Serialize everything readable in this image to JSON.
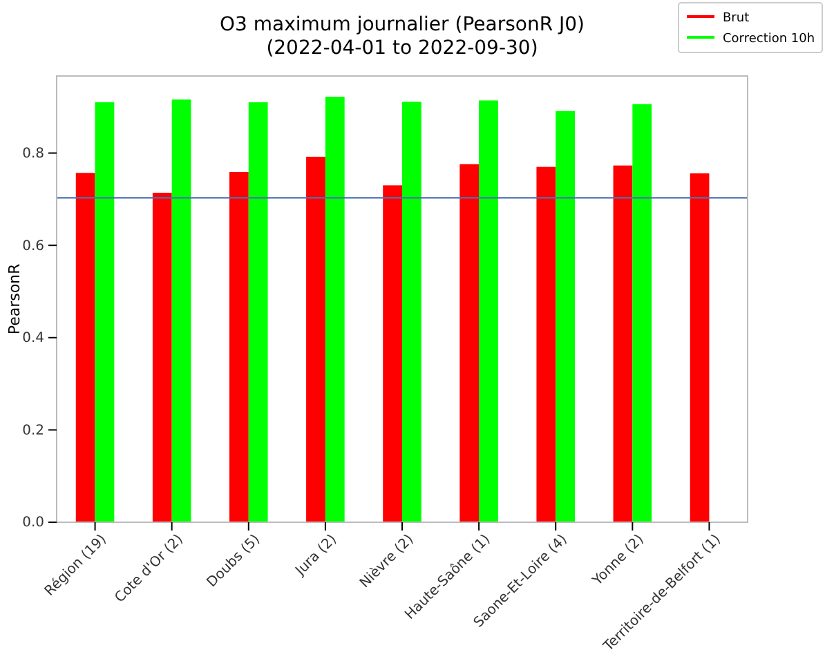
{
  "chart_data": {
    "type": "bar",
    "title": "O3 maximum journalier (PearsonR J0)",
    "subtitle": "(2022-04-01 to 2022-09-30)",
    "ylabel": "PearsonR",
    "categories": [
      "Région (19)",
      "Cote d'Or (2)",
      "Doubs (5)",
      "Jura (2)",
      "Nièvre (2)",
      "Haute-Saône (1)",
      "Saone-Et-Loire (4)",
      "Yonne (2)",
      "Territoire-de-Belfort (1)"
    ],
    "series": [
      {
        "name": "Brut",
        "color": "#ff0000",
        "values": [
          0.757,
          0.714,
          0.759,
          0.792,
          0.73,
          0.776,
          0.77,
          0.773,
          0.756
        ]
      },
      {
        "name": "Correction 10h",
        "color": "#00ff00",
        "values": [
          0.91,
          0.916,
          0.91,
          0.922,
          0.911,
          0.914,
          0.891,
          0.906,
          null
        ]
      }
    ],
    "ylim": [
      0,
      0.967
    ],
    "yticks": [
      {
        "value": 0,
        "label": "0.0"
      },
      {
        "value": 0.2,
        "label": "0.2"
      },
      {
        "value": 0.4,
        "label": "0.4"
      },
      {
        "value": 0.6,
        "label": "0.6"
      },
      {
        "value": 0.8,
        "label": "0.8"
      }
    ],
    "ref_lines": [
      {
        "axis": "y",
        "value": 0.703,
        "color": "#4c72b0"
      }
    ],
    "legend": "top right",
    "grid": false
  }
}
